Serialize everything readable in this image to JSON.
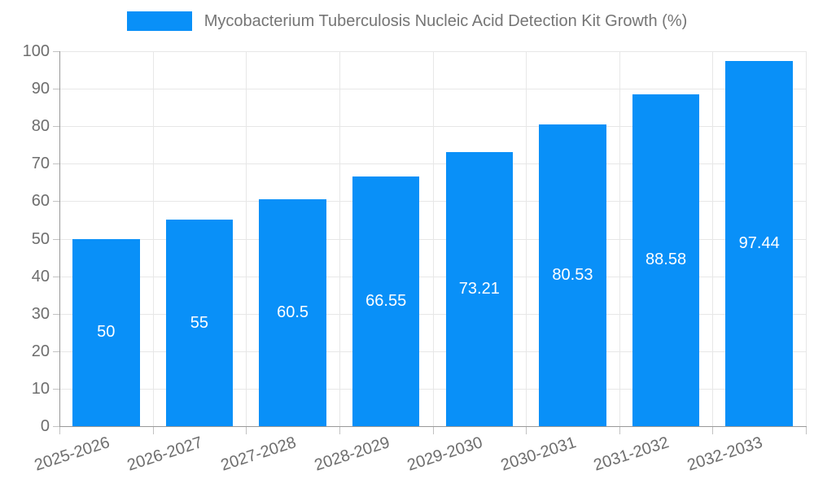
{
  "chart_data": {
    "type": "bar",
    "title": "Mycobacterium Tuberculosis Nucleic Acid Detection Kit Growth (%)",
    "categories": [
      "2025-2026",
      "2026-2027",
      "2027-2028",
      "2028-2029",
      "2029-2030",
      "2030-2031",
      "2031-2032",
      "2032-2033"
    ],
    "values": [
      50,
      55,
      60.5,
      66.55,
      73.21,
      80.53,
      88.58,
      97.44
    ],
    "value_labels": [
      "50",
      "55",
      "60.5",
      "66.55",
      "73.21",
      "80.53",
      "88.58",
      "97.44"
    ],
    "xlabel": "",
    "ylabel": "",
    "ylim": [
      0,
      100
    ],
    "y_ticks": [
      0,
      10,
      20,
      30,
      40,
      50,
      60,
      70,
      80,
      90,
      100
    ],
    "grid": true,
    "legend_position": "top-center",
    "x_label_rotation_deg": -18,
    "bar_label_position": "center-inside"
  },
  "colors": {
    "bar": "#0990F8",
    "title_text": "#757575",
    "axis_text": "#6E6E6E",
    "bar_label_text": "#FFFFFF",
    "grid_line": "#E7E7E7",
    "axis_line": "#999999",
    "tick": "#C2C2C2",
    "background": "#FFFFFF"
  }
}
